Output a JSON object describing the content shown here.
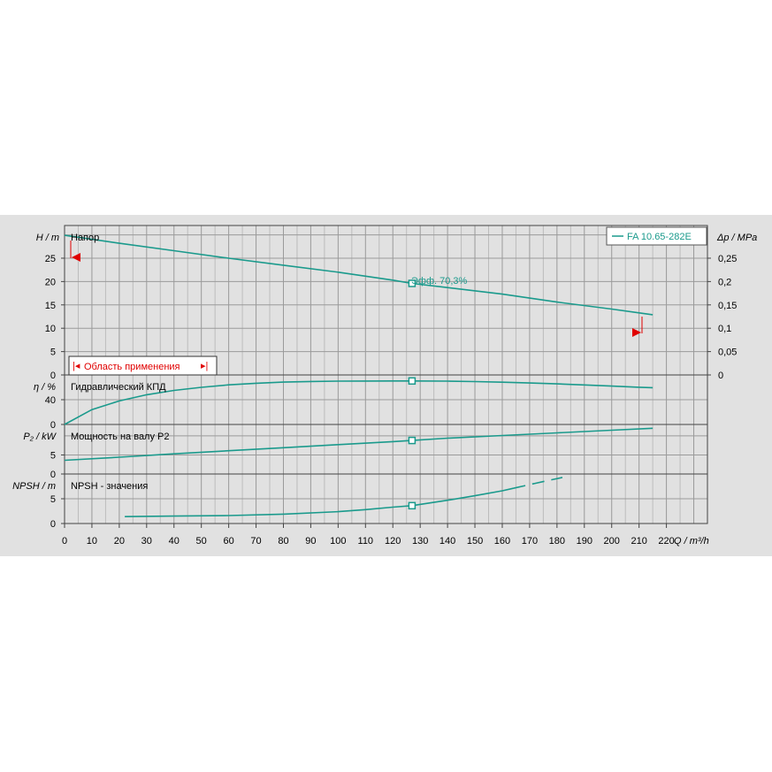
{
  "chart_data": {
    "type": "line",
    "legend": "FA 10.65-282E",
    "x_axis": {
      "label": "Q / m³/h",
      "range": [
        0,
        235
      ],
      "ticks": [
        0,
        10,
        20,
        30,
        40,
        50,
        60,
        70,
        80,
        90,
        100,
        110,
        120,
        130,
        140,
        150,
        160,
        170,
        180,
        190,
        200,
        210,
        220
      ]
    },
    "operating_point": {
      "q": 127,
      "label": "Эфф.  70,3%"
    },
    "panels": [
      {
        "id": "head",
        "title": "Напор",
        "ylabel": "H / m",
        "ylim": [
          0,
          32
        ],
        "yticks": [
          0,
          5,
          10,
          15,
          20,
          25
        ],
        "y2label": "Δp / MPa",
        "y2ticks": [
          "0",
          "0,05",
          "0,1",
          "0,15",
          "0,2",
          "0,25"
        ],
        "series": [
          {
            "name": "FA 10.65-282E",
            "x": [
              0,
              20,
              40,
              60,
              80,
              100,
              120,
              127,
              140,
              160,
              180,
              200,
              210,
              215
            ],
            "y": [
              29.9,
              28.2,
              26.6,
              25.0,
              23.5,
              22.0,
              20.3,
              19.6,
              18.7,
              17.3,
              15.6,
              14.1,
              13.3,
              12.9
            ]
          }
        ],
        "application_range": {
          "label": "Область применения",
          "q_min": 3,
          "q_max": 212
        }
      },
      {
        "id": "efficiency",
        "title": "Гидравлический КПД",
        "ylabel": "η / %",
        "ylim": [
          0,
          80
        ],
        "yticks": [
          0,
          40
        ],
        "series": [
          {
            "name": "FA 10.65-282E",
            "x": [
              0,
              10,
              20,
              30,
              40,
              50,
              60,
              70,
              80,
              90,
              100,
              110,
              120,
              127,
              140,
              150,
              160,
              170,
              180,
              190,
              200,
              210,
              215
            ],
            "y": [
              0,
              24,
              38,
              48,
              55,
              60,
              64,
              66.5,
              68.5,
              69.5,
              70.0,
              70.2,
              70.3,
              70.3,
              70.0,
              69.3,
              68.3,
              67.0,
              65.5,
              63.8,
              62.0,
              60.2,
              59.5
            ]
          }
        ]
      },
      {
        "id": "power",
        "title": "Мощность на валу P2",
        "ylabel": "P₂ / kW",
        "ylim": [
          0,
          13
        ],
        "yticks": [
          0,
          5
        ],
        "series": [
          {
            "name": "FA 10.65-282E",
            "x": [
              0,
              20,
              40,
              60,
              80,
              100,
              120,
              127,
              140,
              160,
              180,
              200,
              215
            ],
            "y": [
              3.6,
              4.4,
              5.3,
              6.1,
              6.9,
              7.7,
              8.5,
              8.8,
              9.4,
              10.1,
              10.8,
              11.5,
              12.0
            ]
          }
        ]
      },
      {
        "id": "npsh",
        "title": "NPSH - значения",
        "ylabel": "NPSH / m",
        "ylim": [
          0,
          10
        ],
        "yticks": [
          0,
          5
        ],
        "series": [
          {
            "name": "FA 10.65-282E",
            "x": [
              22,
              40,
              60,
              80,
              100,
              110,
              120,
              127,
              140,
              150,
              160,
              164
            ],
            "y": [
              1.4,
              1.5,
              1.6,
              1.9,
              2.4,
              2.8,
              3.3,
              3.6,
              4.7,
              5.6,
              6.6,
              7.1
            ]
          },
          {
            "name": "FA 10.65-282E extrapolated",
            "dashed": true,
            "x": [
              164,
              172,
              182
            ],
            "y": [
              7.1,
              8.1,
              9.3
            ]
          }
        ]
      }
    ]
  }
}
